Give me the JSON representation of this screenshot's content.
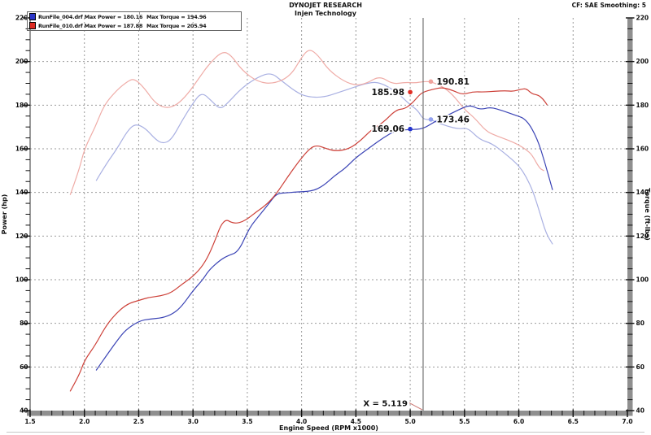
{
  "header": {
    "title": "DYNOJET RESEARCH",
    "subtitle": "Injen Technology",
    "correction_note": "CF: SAE  Smoothing: 5"
  },
  "legend": {
    "entries": [
      {
        "swatch_color": "#2b35c8",
        "label": "RunFile_004.drf Max Power = 180.16",
        "torque_label": "Max Torque = 194.96"
      },
      {
        "swatch_color": "#de2b22",
        "label": "RunFile_010.drf Max Power = 187.88",
        "torque_label": "Max Torque = 205.94"
      }
    ]
  },
  "chart_data": {
    "type": "line",
    "title": "DYNOJET RESEARCH",
    "subtitle": "Injen Technology",
    "correction_note": "CF: SAE  Smoothing: 5",
    "x_axis": {
      "label": "Engine Speed (RPM x1000)",
      "min": 1.5,
      "max": 7.0,
      "major_step": 0.5,
      "minor_step": 0.1,
      "tick_labels": [
        "1.5",
        "2.0",
        "2.5",
        "3.0",
        "3.5",
        "4.0",
        "4.5",
        "5.0",
        "5.5",
        "6.0",
        "6.5",
        "7.0"
      ]
    },
    "y_axis_left": {
      "label": "Power (hp)",
      "min": 40,
      "max": 220,
      "major_step": 20,
      "minor_step": 5,
      "tick_labels": [
        "40",
        "60",
        "80",
        "100",
        "120",
        "140",
        "160",
        "180",
        "200",
        "220"
      ]
    },
    "y_axis_right": {
      "label": "Torque (ft-lbs)",
      "min": 40,
      "max": 220,
      "major_step": 20,
      "minor_step": 5,
      "tick_labels": [
        "40",
        "60",
        "80",
        "100",
        "120",
        "140",
        "160",
        "180",
        "200",
        "220"
      ]
    },
    "grid": {
      "color": "#9a9a9a",
      "style": "dotted",
      "vertical_at": [
        2.0,
        2.5,
        3.0,
        3.5,
        4.0,
        4.5,
        5.0,
        5.5,
        6.0,
        6.5
      ],
      "horizontal_at": [
        60,
        80,
        100,
        120,
        140,
        160,
        180,
        200
      ]
    },
    "cursor": {
      "x": 5.119,
      "label": "X = 5.119"
    },
    "cursor_markers": [
      {
        "label": "190.81",
        "rpm": 5.19,
        "value": 190.81,
        "color": "#f0a29c",
        "side": "right"
      },
      {
        "label": "185.98",
        "rpm": 5.0,
        "value": 185.98,
        "color": "#e02d24",
        "side": "left"
      },
      {
        "label": "173.46",
        "rpm": 5.19,
        "value": 173.46,
        "color": "#93a2f0",
        "side": "right"
      },
      {
        "label": "169.06",
        "rpm": 5.0,
        "value": 169.06,
        "color": "#2434cf",
        "side": "left"
      }
    ],
    "series": [
      {
        "name": "RunFile_004 torque",
        "file": "RunFile_004.drf",
        "kind": "torque",
        "max_torque": 194.96,
        "color": "#a9b0e2",
        "points": [
          [
            2.11,
            145.5
          ],
          [
            2.2,
            153
          ],
          [
            2.3,
            160
          ],
          [
            2.4,
            168.5
          ],
          [
            2.47,
            171.5
          ],
          [
            2.56,
            169.5
          ],
          [
            2.65,
            164.5
          ],
          [
            2.72,
            162.3
          ],
          [
            2.8,
            164
          ],
          [
            2.9,
            173
          ],
          [
            3.0,
            181
          ],
          [
            3.08,
            186
          ],
          [
            3.17,
            182
          ],
          [
            3.25,
            178
          ],
          [
            3.32,
            181
          ],
          [
            3.45,
            188
          ],
          [
            3.6,
            193
          ],
          [
            3.72,
            194.96
          ],
          [
            3.82,
            191
          ],
          [
            3.95,
            186
          ],
          [
            4.05,
            183.8
          ],
          [
            4.2,
            183.5
          ],
          [
            4.35,
            186
          ],
          [
            4.5,
            188.5
          ],
          [
            4.62,
            190.3
          ],
          [
            4.72,
            190.5
          ],
          [
            4.87,
            186.3
          ],
          [
            5.0,
            180.1
          ],
          [
            5.07,
            177.6
          ],
          [
            5.119,
            173.46
          ],
          [
            5.19,
            173.4
          ],
          [
            5.25,
            172
          ],
          [
            5.34,
            170.4
          ],
          [
            5.45,
            169
          ],
          [
            5.53,
            169.7
          ],
          [
            5.64,
            164.2
          ],
          [
            5.75,
            162.5
          ],
          [
            5.87,
            158
          ],
          [
            6.0,
            152.4
          ],
          [
            6.07,
            147
          ],
          [
            6.13,
            140.6
          ],
          [
            6.19,
            131.3
          ],
          [
            6.25,
            121.3
          ],
          [
            6.31,
            116.4
          ]
        ]
      },
      {
        "name": "RunFile_010 torque",
        "file": "RunFile_010.drf",
        "kind": "torque",
        "max_torque": 205.94,
        "color": "#efaba6",
        "points": [
          [
            1.87,
            139
          ],
          [
            1.95,
            150
          ],
          [
            2.0,
            160
          ],
          [
            2.1,
            170
          ],
          [
            2.18,
            180
          ],
          [
            2.3,
            187
          ],
          [
            2.4,
            191
          ],
          [
            2.46,
            192.2
          ],
          [
            2.55,
            188
          ],
          [
            2.65,
            181
          ],
          [
            2.75,
            178.5
          ],
          [
            2.85,
            180
          ],
          [
            2.95,
            185
          ],
          [
            3.05,
            192
          ],
          [
            3.15,
            199
          ],
          [
            3.27,
            204.8
          ],
          [
            3.35,
            203
          ],
          [
            3.45,
            196
          ],
          [
            3.6,
            190.5
          ],
          [
            3.75,
            189.8
          ],
          [
            3.9,
            193.5
          ],
          [
            4.0,
            202
          ],
          [
            4.07,
            205.94
          ],
          [
            4.15,
            203
          ],
          [
            4.25,
            196
          ],
          [
            4.39,
            190.9
          ],
          [
            4.5,
            189
          ],
          [
            4.6,
            190
          ],
          [
            4.72,
            193.4
          ],
          [
            4.84,
            189.6
          ],
          [
            4.95,
            190.5
          ],
          [
            5.05,
            190.2
          ],
          [
            5.119,
            190.81
          ],
          [
            5.19,
            190.8
          ],
          [
            5.3,
            188.5
          ],
          [
            5.39,
            184.9
          ],
          [
            5.5,
            178
          ],
          [
            5.59,
            174.3
          ],
          [
            5.7,
            168
          ],
          [
            5.79,
            166
          ],
          [
            5.9,
            164
          ],
          [
            6.0,
            161.8
          ],
          [
            6.07,
            159.5
          ],
          [
            6.12,
            157.4
          ],
          [
            6.19,
            151.1
          ],
          [
            6.23,
            150
          ]
        ]
      },
      {
        "name": "RunFile_004 power",
        "file": "RunFile_004.drf",
        "kind": "power",
        "max_power": 180.16,
        "color": "#3a43b5",
        "points": [
          [
            2.11,
            58.6
          ],
          [
            2.2,
            65
          ],
          [
            2.3,
            72
          ],
          [
            2.38,
            77
          ],
          [
            2.5,
            81
          ],
          [
            2.6,
            82
          ],
          [
            2.72,
            82.5
          ],
          [
            2.82,
            84.5
          ],
          [
            2.9,
            88
          ],
          [
            3.0,
            95
          ],
          [
            3.09,
            100
          ],
          [
            3.15,
            104.6
          ],
          [
            3.25,
            109
          ],
          [
            3.32,
            111
          ],
          [
            3.42,
            112.8
          ],
          [
            3.52,
            124
          ],
          [
            3.62,
            130
          ],
          [
            3.7,
            135
          ],
          [
            3.77,
            139.5
          ],
          [
            3.85,
            139.8
          ],
          [
            3.95,
            140.2
          ],
          [
            4.1,
            140.6
          ],
          [
            4.2,
            143
          ],
          [
            4.3,
            147.5
          ],
          [
            4.4,
            151
          ],
          [
            4.5,
            156
          ],
          [
            4.64,
            161
          ],
          [
            4.75,
            165
          ],
          [
            4.87,
            168.5
          ],
          [
            5.0,
            168.8
          ],
          [
            5.119,
            169.06
          ],
          [
            5.22,
            172.3
          ],
          [
            5.35,
            175.5
          ],
          [
            5.45,
            178
          ],
          [
            5.55,
            180.16
          ],
          [
            5.64,
            177.9
          ],
          [
            5.74,
            179.1
          ],
          [
            5.85,
            177.5
          ],
          [
            5.97,
            175.4
          ],
          [
            6.07,
            173.5
          ],
          [
            6.17,
            164.8
          ],
          [
            6.24,
            153.7
          ],
          [
            6.31,
            141.3
          ]
        ]
      },
      {
        "name": "RunFile_010 power",
        "file": "RunFile_010.drf",
        "kind": "power",
        "max_power": 187.88,
        "color": "#cd4038",
        "points": [
          [
            1.87,
            49
          ],
          [
            1.95,
            56
          ],
          [
            2.0,
            63
          ],
          [
            2.1,
            70
          ],
          [
            2.2,
            79
          ],
          [
            2.3,
            85
          ],
          [
            2.4,
            89
          ],
          [
            2.5,
            90.5
          ],
          [
            2.6,
            92
          ],
          [
            2.7,
            92.5
          ],
          [
            2.8,
            94
          ],
          [
            2.9,
            98
          ],
          [
            3.0,
            101.5
          ],
          [
            3.1,
            107
          ],
          [
            3.18,
            115
          ],
          [
            3.28,
            128.3
          ],
          [
            3.38,
            125.5
          ],
          [
            3.48,
            127
          ],
          [
            3.58,
            131
          ],
          [
            3.68,
            134.5
          ],
          [
            3.77,
            139.5
          ],
          [
            3.87,
            147
          ],
          [
            3.97,
            154
          ],
          [
            4.07,
            160
          ],
          [
            4.14,
            161.7
          ],
          [
            4.23,
            160
          ],
          [
            4.32,
            158.9
          ],
          [
            4.44,
            160
          ],
          [
            4.55,
            164
          ],
          [
            4.64,
            168.6
          ],
          [
            4.75,
            172
          ],
          [
            4.87,
            177.9
          ],
          [
            4.95,
            178.3
          ],
          [
            5.02,
            181
          ],
          [
            5.08,
            184.5
          ],
          [
            5.119,
            185.98
          ],
          [
            5.2,
            187.2
          ],
          [
            5.3,
            188.2
          ],
          [
            5.4,
            186.6
          ],
          [
            5.48,
            184.8
          ],
          [
            5.58,
            186.2
          ],
          [
            5.68,
            186
          ],
          [
            5.78,
            186.4
          ],
          [
            5.88,
            186.6
          ],
          [
            5.95,
            186.3
          ],
          [
            6.02,
            187.3
          ],
          [
            6.07,
            187.6
          ],
          [
            6.12,
            185.2
          ],
          [
            6.18,
            184.6
          ],
          [
            6.22,
            183
          ],
          [
            6.26,
            180.2
          ]
        ]
      }
    ]
  }
}
